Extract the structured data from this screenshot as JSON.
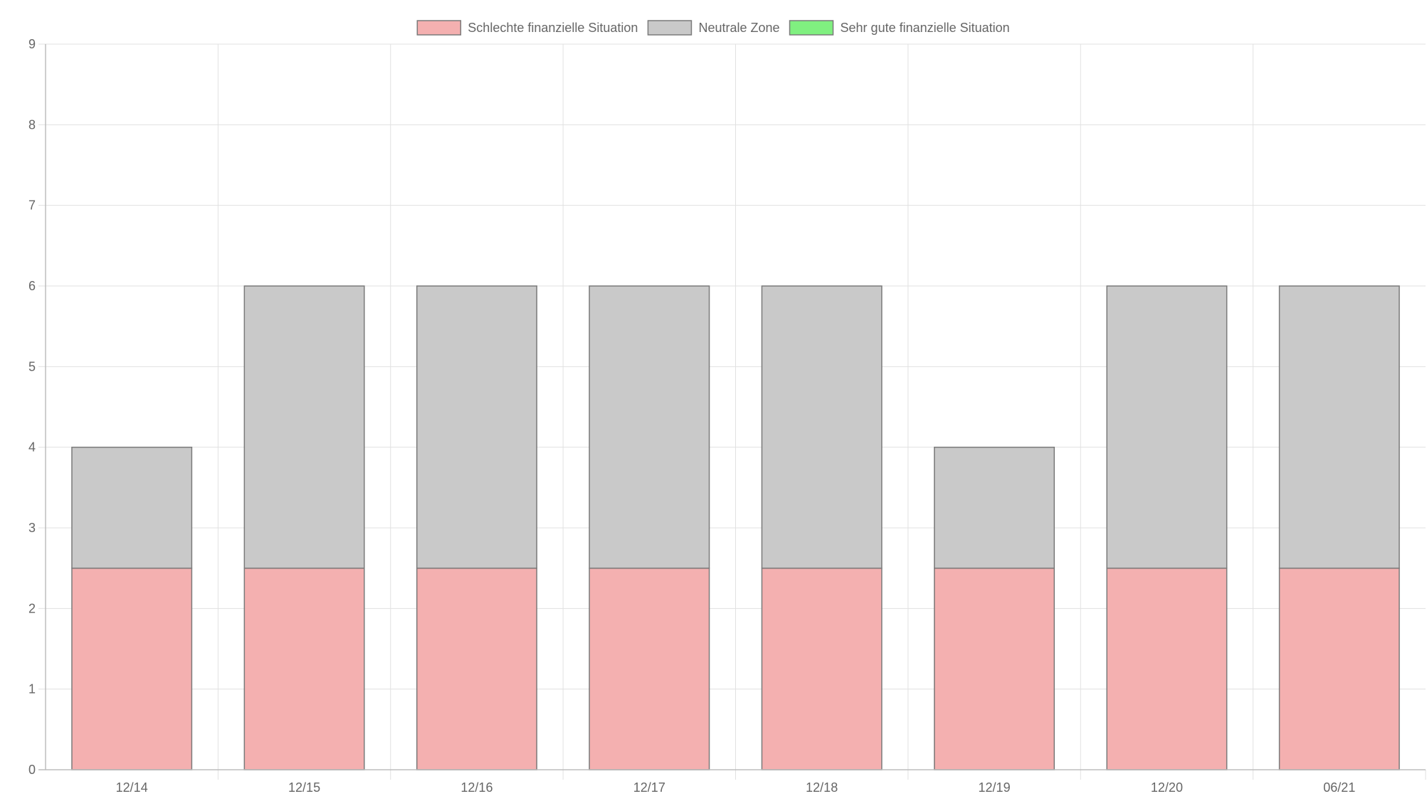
{
  "chart_data": {
    "type": "bar",
    "stacked": true,
    "categories": [
      "12/14",
      "12/15",
      "12/16",
      "12/17",
      "12/18",
      "12/19",
      "12/20",
      "06/21"
    ],
    "series": [
      {
        "name": "Schlechte finanzielle Situation",
        "values": [
          2.5,
          2.5,
          2.5,
          2.5,
          2.5,
          2.5,
          2.5,
          2.5
        ],
        "color": "#f4b0b0"
      },
      {
        "name": "Neutrale Zone",
        "values": [
          1.5,
          3.5,
          3.5,
          3.5,
          3.5,
          1.5,
          3.5,
          3.5
        ],
        "color": "#c9c9c9"
      },
      {
        "name": "Sehr gute finanzielle Situation",
        "values": [
          0,
          0,
          0,
          0,
          0,
          0,
          0,
          0
        ],
        "color": "#80f080"
      }
    ],
    "y_ticks": [
      "0",
      "1",
      "2",
      "3",
      "4",
      "5",
      "6",
      "7",
      "8",
      "9"
    ],
    "ylim": [
      0,
      9
    ],
    "grid": true,
    "legend_position": "top-center",
    "title": "",
    "xlabel": "",
    "ylabel": ""
  },
  "colors": {
    "grid": "#e1e1e1",
    "axis": "#bdbdbd",
    "tick_text": "#666666",
    "bar_border": "#7a7a7a"
  }
}
